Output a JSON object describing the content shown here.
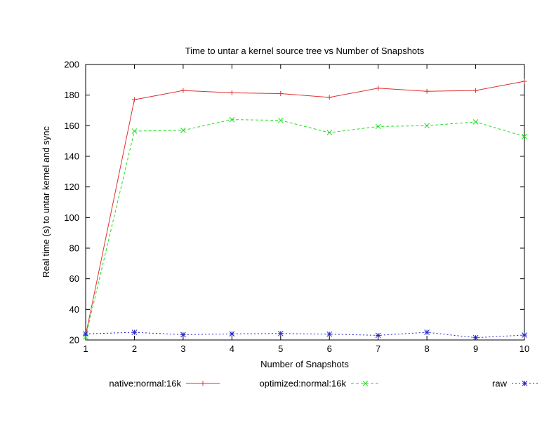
{
  "chart_data": {
    "type": "line",
    "title": "Time to untar a kernel source tree vs Number of Snapshots",
    "xlabel": "Number of Snapshots",
    "ylabel": "Real time (s) to untar kernel and sync",
    "xlim": [
      1,
      10
    ],
    "ylim": [
      20,
      200
    ],
    "x": [
      1,
      2,
      3,
      4,
      5,
      6,
      7,
      8,
      9,
      10
    ],
    "xticks": [
      1,
      2,
      3,
      4,
      5,
      6,
      7,
      8,
      9,
      10
    ],
    "yticks": [
      20,
      40,
      60,
      80,
      100,
      120,
      140,
      160,
      180,
      200
    ],
    "grid": false,
    "legend_position": "bottom",
    "series": [
      {
        "name": "native:normal:16k",
        "color": "#e03030",
        "marker": "plus",
        "dash": "solid",
        "values": [
          23,
          177,
          183,
          181.5,
          181,
          178.5,
          184.5,
          182.5,
          183,
          189
        ]
      },
      {
        "name": "optimized:normal:16k",
        "color": "#22dd22",
        "marker": "x",
        "dash": "dashed",
        "values": [
          22,
          156.5,
          157,
          164,
          163.5,
          155.5,
          159.5,
          160,
          162.5,
          153
        ]
      },
      {
        "name": "raw",
        "color": "#2222cc",
        "marker": "star",
        "dash": "dotted",
        "values": [
          24,
          25,
          23.5,
          24,
          24.2,
          23.8,
          23,
          25,
          21.5,
          23.2
        ]
      }
    ]
  }
}
